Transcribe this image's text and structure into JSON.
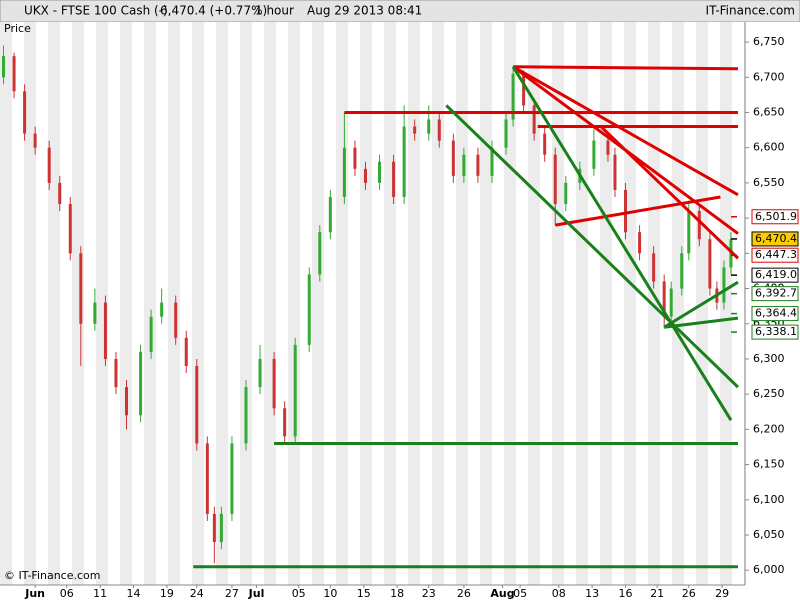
{
  "chart_data": {
    "type": "candlestick",
    "title": "UKX - FTSE 100 Cash (-)",
    "last": "6,470.4 (+0.77%)",
    "interval": "1 hour",
    "timestamp": "Aug 29 2013 08:41",
    "source": "IT-Finance.com",
    "ylabel": "Price",
    "copyright": "© IT-Finance.com",
    "up_color": "#33aa33",
    "down_color": "#cc3333",
    "xlim": [
      0,
      212
    ],
    "ylim": [
      5979,
      6760
    ],
    "xticks": [
      {
        "value": 10,
        "label": "Jun"
      },
      {
        "value": 19,
        "label": "06"
      },
      {
        "value": 28.5,
        "label": "11"
      },
      {
        "value": 38,
        "label": "14"
      },
      {
        "value": 47.5,
        "label": "19"
      },
      {
        "value": 56,
        "label": "24"
      },
      {
        "value": 66,
        "label": "27"
      },
      {
        "value": 73,
        "label": "Jul"
      },
      {
        "value": 85,
        "label": "05"
      },
      {
        "value": 94,
        "label": "10"
      },
      {
        "value": 103.5,
        "label": "15"
      },
      {
        "value": 113,
        "label": "18"
      },
      {
        "value": 122,
        "label": "23"
      },
      {
        "value": 132,
        "label": "26"
      },
      {
        "value": 143,
        "label": "Aug"
      },
      {
        "value": 148,
        "label": "05"
      },
      {
        "value": 159,
        "label": "08"
      },
      {
        "value": 168.5,
        "label": "13"
      },
      {
        "value": 178,
        "label": "16"
      },
      {
        "value": 187,
        "label": "21"
      },
      {
        "value": 196,
        "label": "26"
      },
      {
        "value": 205.5,
        "label": "29"
      }
    ],
    "yticks": [
      {
        "value": 6000,
        "label": "6,000"
      },
      {
        "value": 6050,
        "label": "6,050"
      },
      {
        "value": 6100,
        "label": "6,100"
      },
      {
        "value": 6150,
        "label": "6,150"
      },
      {
        "value": 6200,
        "label": "6,200"
      },
      {
        "value": 6250,
        "label": "6,250"
      },
      {
        "value": 6300,
        "label": "6,300"
      },
      {
        "value": 6350,
        "label": "6,350"
      },
      {
        "value": 6400,
        "label": "6,400"
      },
      {
        "value": 6450,
        "label": "6,450"
      },
      {
        "value": 6500,
        "label": "6,500"
      },
      {
        "value": 6550,
        "label": "6,550"
      },
      {
        "value": 6600,
        "label": "6,600"
      },
      {
        "value": 6650,
        "label": "6,650"
      },
      {
        "value": 6700,
        "label": "6,700"
      },
      {
        "value": 6750,
        "label": "6,750"
      }
    ],
    "x": [
      1,
      4,
      7,
      10,
      14,
      17,
      20,
      23,
      27,
      30,
      33,
      36,
      40,
      43,
      46,
      50,
      53,
      56,
      59,
      61,
      63,
      66,
      70,
      74,
      78,
      81,
      84,
      88,
      91,
      94,
      98,
      101,
      104,
      108,
      112,
      115,
      118,
      122,
      125,
      129,
      132,
      136,
      140,
      144,
      146,
      149,
      152,
      155,
      158,
      161,
      165,
      169,
      173,
      175,
      178,
      182,
      186,
      189,
      191,
      194,
      196,
      199,
      202,
      204,
      206,
      208
    ],
    "open": [
      6700,
      6730,
      6680,
      6620,
      6600,
      6550,
      6520,
      6450,
      6350,
      6380,
      6300,
      6260,
      6220,
      6310,
      6360,
      6380,
      6330,
      6290,
      6180,
      6080,
      6040,
      6080,
      6180,
      6260,
      6300,
      6230,
      6190,
      6320,
      6420,
      6480,
      6530,
      6600,
      6570,
      6550,
      6580,
      6530,
      6630,
      6620,
      6640,
      6610,
      6560,
      6590,
      6560,
      6600,
      6640,
      6705,
      6660,
      6620,
      6590,
      6520,
      6550,
      6570,
      6610,
      6590,
      6540,
      6480,
      6450,
      6410,
      6360,
      6400,
      6450,
      6510,
      6470,
      6400,
      6380,
      6430
    ],
    "high": [
      6745,
      6735,
      6690,
      6630,
      6610,
      6560,
      6530,
      6460,
      6400,
      6390,
      6310,
      6270,
      6320,
      6370,
      6400,
      6390,
      6340,
      6300,
      6190,
      6090,
      6090,
      6190,
      6270,
      6320,
      6310,
      6240,
      6330,
      6430,
      6490,
      6540,
      6650,
      6610,
      6580,
      6590,
      6590,
      6660,
      6640,
      6660,
      6650,
      6620,
      6600,
      6600,
      6610,
      6650,
      6715,
      6710,
      6670,
      6630,
      6600,
      6560,
      6580,
      6630,
      6620,
      6600,
      6550,
      6490,
      6460,
      6420,
      6410,
      6460,
      6525,
      6520,
      6480,
      6410,
      6440,
      6480
    ],
    "low": [
      6690,
      6670,
      6610,
      6590,
      6540,
      6510,
      6440,
      6290,
      6340,
      6290,
      6250,
      6200,
      6210,
      6300,
      6350,
      6320,
      6280,
      6170,
      6070,
      6010,
      6030,
      6070,
      6170,
      6250,
      6220,
      6180,
      6180,
      6310,
      6410,
      6470,
      6520,
      6560,
      6540,
      6540,
      6520,
      6520,
      6610,
      6610,
      6600,
      6550,
      6550,
      6550,
      6550,
      6590,
      6630,
      6650,
      6610,
      6580,
      6490,
      6510,
      6540,
      6560,
      6580,
      6530,
      6470,
      6440,
      6400,
      6345,
      6350,
      6390,
      6440,
      6460,
      6390,
      6370,
      6370,
      6420
    ],
    "close": [
      6730,
      6680,
      6620,
      6600,
      6550,
      6520,
      6450,
      6350,
      6380,
      6300,
      6260,
      6220,
      6310,
      6360,
      6380,
      6330,
      6290,
      6180,
      6080,
      6040,
      6080,
      6180,
      6260,
      6300,
      6230,
      6190,
      6320,
      6420,
      6480,
      6530,
      6600,
      6570,
      6550,
      6580,
      6530,
      6630,
      6620,
      6640,
      6610,
      6560,
      6590,
      6560,
      6600,
      6640,
      6705,
      6660,
      6620,
      6590,
      6520,
      6550,
      6570,
      6610,
      6590,
      6540,
      6480,
      6450,
      6410,
      6360,
      6400,
      6450,
      6510,
      6470,
      6400,
      6380,
      6430,
      6470
    ],
    "lines": [
      {
        "x": [
          146,
          210
        ],
        "y": [
          6715,
          6712
        ],
        "color": "#e00000"
      },
      {
        "x": [
          98,
          210
        ],
        "y": [
          6650,
          6650
        ],
        "color": "#e00000"
      },
      {
        "x": [
          153,
          210
        ],
        "y": [
          6630,
          6630
        ],
        "color": "#e00000"
      },
      {
        "x": [
          146,
          210
        ],
        "y": [
          6715,
          6533
        ],
        "color": "#e00000"
      },
      {
        "x": [
          146,
          210
        ],
        "y": [
          6715,
          6478
        ],
        "color": "#e00000"
      },
      {
        "x": [
          171,
          210
        ],
        "y": [
          6630,
          6443
        ],
        "color": "#e00000"
      },
      {
        "x": [
          158,
          205
        ],
        "y": [
          6490,
          6530
        ],
        "color": "#e00000"
      },
      {
        "x": [
          127,
          210
        ],
        "y": [
          6660,
          6260
        ],
        "color": "#1a801a"
      },
      {
        "x": [
          146,
          208
        ],
        "y": [
          6715,
          6213
        ],
        "color": "#1a801a"
      },
      {
        "x": [
          189,
          210
        ],
        "y": [
          6345,
          6358
        ],
        "color": "#1a801a"
      },
      {
        "x": [
          189,
          210
        ],
        "y": [
          6345,
          6409
        ],
        "color": "#1a801a"
      },
      {
        "x": [
          78,
          210
        ],
        "y": [
          6180,
          6180
        ],
        "color": "#1a801a"
      },
      {
        "x": [
          55,
          210
        ],
        "y": [
          6005,
          6005
        ],
        "color": "#1a801a"
      }
    ],
    "price_tags": [
      {
        "value": 6501.9,
        "label": "6,501.9",
        "color": "#e00000",
        "fill": "#ffffff"
      },
      {
        "value": 6470.4,
        "label": "6,470.4",
        "color": "#000000",
        "fill": "#ffcc00"
      },
      {
        "value": 6447.3,
        "label": "6,447.3",
        "color": "#e00000",
        "fill": "#ffffff"
      },
      {
        "value": 6419.0,
        "label": "6,419.0",
        "color": "#000000",
        "fill": "#ffffff"
      },
      {
        "value": 6392.7,
        "label": "6,392.7",
        "color": "#1a801a",
        "fill": "#ffffff"
      },
      {
        "value": 6364.4,
        "label": "6,364.4",
        "color": "#1a801a",
        "fill": "#ffffff"
      },
      {
        "value": 6338.1,
        "label": "6,338.1",
        "color": "#1a801a",
        "fill": "#ffffff"
      }
    ]
  }
}
